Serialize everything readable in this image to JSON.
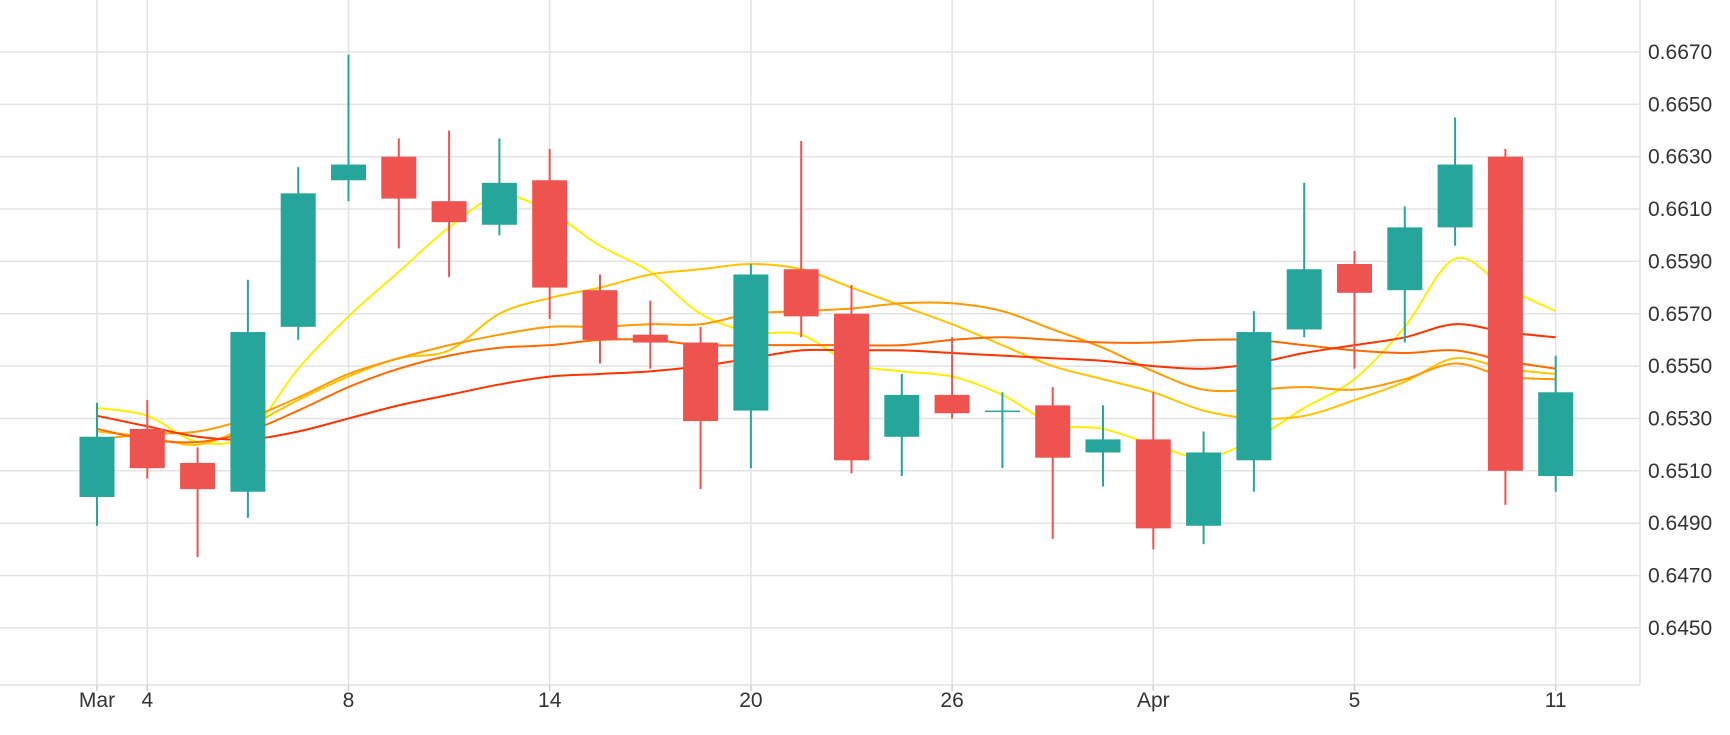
{
  "chart_data": {
    "type": "candlestick",
    "title": "",
    "xlabel": "",
    "ylabel": "",
    "ylim": [
      0.643,
      0.669
    ],
    "y_ticks": [
      "0.6450",
      "0.6470",
      "0.6490",
      "0.6510",
      "0.6530",
      "0.6550",
      "0.6570",
      "0.6590",
      "0.6610",
      "0.6630",
      "0.6650",
      "0.6670"
    ],
    "x_ticks": [
      {
        "label": "Mar",
        "index": 0
      },
      {
        "label": "4",
        "index": 1
      },
      {
        "label": "8",
        "index": 5
      },
      {
        "label": "14",
        "index": 9
      },
      {
        "label": "20",
        "index": 13
      },
      {
        "label": "26",
        "index": 17
      },
      {
        "label": "Apr",
        "index": 21
      },
      {
        "label": "5",
        "index": 25
      },
      {
        "label": "11",
        "index": 29
      }
    ],
    "grid": true,
    "up_color": "#26a69a",
    "down_color": "#ef5350",
    "candles": [
      {
        "o": 0.65,
        "h": 0.6536,
        "l": 0.6489,
        "c": 0.6523
      },
      {
        "o": 0.6526,
        "h": 0.6537,
        "l": 0.6507,
        "c": 0.6511
      },
      {
        "o": 0.6513,
        "h": 0.6519,
        "l": 0.6477,
        "c": 0.6503
      },
      {
        "o": 0.6502,
        "h": 0.6583,
        "l": 0.6492,
        "c": 0.6563
      },
      {
        "o": 0.6565,
        "h": 0.6626,
        "l": 0.656,
        "c": 0.6616
      },
      {
        "o": 0.6621,
        "h": 0.6669,
        "l": 0.6613,
        "c": 0.6627
      },
      {
        "o": 0.663,
        "h": 0.6637,
        "l": 0.6595,
        "c": 0.6614
      },
      {
        "o": 0.6613,
        "h": 0.664,
        "l": 0.6584,
        "c": 0.6605
      },
      {
        "o": 0.6604,
        "h": 0.6637,
        "l": 0.66,
        "c": 0.662
      },
      {
        "o": 0.6621,
        "h": 0.6633,
        "l": 0.6568,
        "c": 0.658
      },
      {
        "o": 0.6579,
        "h": 0.6585,
        "l": 0.6551,
        "c": 0.656
      },
      {
        "o": 0.6562,
        "h": 0.6575,
        "l": 0.6549,
        "c": 0.6559
      },
      {
        "o": 0.6559,
        "h": 0.6565,
        "l": 0.6503,
        "c": 0.6529
      },
      {
        "o": 0.6533,
        "h": 0.6589,
        "l": 0.6511,
        "c": 0.6585
      },
      {
        "o": 0.6587,
        "h": 0.6636,
        "l": 0.6561,
        "c": 0.6569
      },
      {
        "o": 0.657,
        "h": 0.6581,
        "l": 0.6509,
        "c": 0.6514
      },
      {
        "o": 0.6523,
        "h": 0.6547,
        "l": 0.6508,
        "c": 0.6539
      },
      {
        "o": 0.6539,
        "h": 0.6561,
        "l": 0.653,
        "c": 0.6532
      },
      {
        "o": 0.6533,
        "h": 0.654,
        "l": 0.6511,
        "c": 0.6533
      },
      {
        "o": 0.6535,
        "h": 0.6542,
        "l": 0.6484,
        "c": 0.6515
      },
      {
        "o": 0.6517,
        "h": 0.6535,
        "l": 0.6504,
        "c": 0.6522
      },
      {
        "o": 0.6522,
        "h": 0.654,
        "l": 0.648,
        "c": 0.6488
      },
      {
        "o": 0.6489,
        "h": 0.6525,
        "l": 0.6482,
        "c": 0.6517
      },
      {
        "o": 0.6514,
        "h": 0.6571,
        "l": 0.6502,
        "c": 0.6563
      },
      {
        "o": 0.6564,
        "h": 0.662,
        "l": 0.6561,
        "c": 0.6587
      },
      {
        "o": 0.6589,
        "h": 0.6594,
        "l": 0.6549,
        "c": 0.6578
      },
      {
        "o": 0.6579,
        "h": 0.6611,
        "l": 0.6559,
        "c": 0.6603
      },
      {
        "o": 0.6603,
        "h": 0.6645,
        "l": 0.6596,
        "c": 0.6627
      },
      {
        "o": 0.663,
        "h": 0.6633,
        "l": 0.6497,
        "c": 0.651
      },
      {
        "o": 0.6508,
        "h": 0.6554,
        "l": 0.6502,
        "c": 0.654
      }
    ],
    "series": [
      {
        "color": "#ffee00",
        "values": [
          0.6534,
          0.6531,
          0.6521,
          0.6524,
          0.6549,
          0.6569,
          0.6586,
          0.6603,
          0.6615,
          0.6609,
          0.6596,
          0.6586,
          0.657,
          0.6563,
          0.6562,
          0.6551,
          0.6548,
          0.6546,
          0.6539,
          0.6528,
          0.6526,
          0.652,
          0.6515,
          0.6522,
          0.6534,
          0.6545,
          0.6565,
          0.6591,
          0.658,
          0.6571
        ]
      },
      {
        "color": "#ffc300",
        "values": [
          0.6525,
          0.6523,
          0.652,
          0.6527,
          0.6537,
          0.6546,
          0.6553,
          0.6556,
          0.657,
          0.6576,
          0.658,
          0.6585,
          0.6587,
          0.6589,
          0.6587,
          0.658,
          0.6573,
          0.6566,
          0.6558,
          0.655,
          0.6545,
          0.654,
          0.6533,
          0.653,
          0.6531,
          0.6537,
          0.6544,
          0.6553,
          0.6549,
          0.6547
        ]
      },
      {
        "color": "#ff9a00",
        "values": [
          0.6522,
          0.6524,
          0.6525,
          0.653,
          0.6538,
          0.6547,
          0.6553,
          0.6558,
          0.6562,
          0.6565,
          0.6565,
          0.6566,
          0.6566,
          0.657,
          0.6571,
          0.6572,
          0.6574,
          0.6574,
          0.6571,
          0.6564,
          0.6557,
          0.6548,
          0.6541,
          0.6541,
          0.6542,
          0.6541,
          0.6545,
          0.6551,
          0.6546,
          0.6545
        ]
      },
      {
        "color": "#ff6a00",
        "values": [
          0.6526,
          0.6522,
          0.6521,
          0.6525,
          0.6533,
          0.6542,
          0.6549,
          0.6554,
          0.6557,
          0.6558,
          0.656,
          0.656,
          0.6558,
          0.6558,
          0.6558,
          0.6558,
          0.6558,
          0.656,
          0.6561,
          0.656,
          0.6559,
          0.6559,
          0.656,
          0.656,
          0.6558,
          0.6556,
          0.6555,
          0.6556,
          0.6552,
          0.6549
        ]
      },
      {
        "color": "#ff3300",
        "values": [
          0.6531,
          0.6527,
          0.6523,
          0.6522,
          0.6525,
          0.653,
          0.6535,
          0.6539,
          0.6543,
          0.6546,
          0.6547,
          0.6548,
          0.655,
          0.6553,
          0.6556,
          0.6556,
          0.6556,
          0.6555,
          0.6554,
          0.6553,
          0.6552,
          0.655,
          0.6549,
          0.6551,
          0.6555,
          0.6558,
          0.6561,
          0.6566,
          0.6563,
          0.6561
        ]
      }
    ]
  }
}
